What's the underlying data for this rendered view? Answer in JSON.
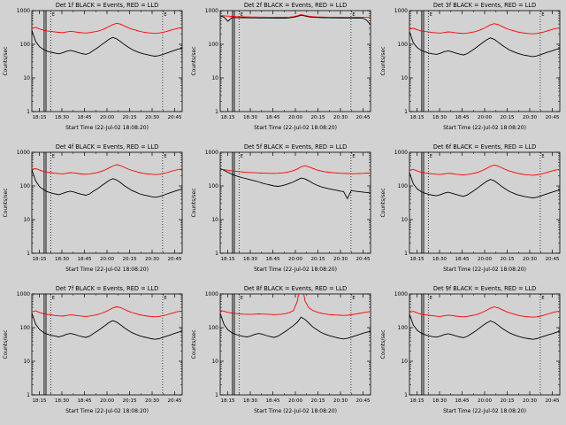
{
  "window": {
    "background": "#d2d2d2"
  },
  "colors": {
    "events": "#000000",
    "lld": "#ff0000",
    "frame": "#000000"
  },
  "chart_data": {
    "common": {
      "type": "line",
      "yscale": "log",
      "ylim": [
        1,
        1000
      ],
      "ytick_labels": [
        "1000",
        "100",
        "10",
        "1"
      ],
      "ytick_values": [
        1000,
        100,
        10,
        1
      ],
      "xlabel": "Start Time (22-Jul-02 18:08:20)",
      "ylabel": "Counts/sec",
      "xtick_labels": [
        "18:15",
        "18:30",
        "18:45",
        "20:00",
        "20:15",
        "20:30",
        "20:45"
      ],
      "xtick_pos": [
        0.05,
        0.2,
        0.35,
        0.5,
        0.65,
        0.8,
        0.95
      ],
      "vlines_solid": [
        0.082,
        0.094
      ],
      "vlines_dotted": [
        0.125,
        0.87
      ],
      "vline_flag": "E",
      "legend_note": "BLACK = Events, RED = LLD",
      "grid": false
    },
    "panels": [
      {
        "det": "1f",
        "title": "Det 1f BLACK = Events, RED = LLD",
        "series": [
          {
            "name": "Events",
            "color": "#000000",
            "values": [
              260,
              120,
              85,
              70,
              62,
              58,
              55,
              52,
              56,
              62,
              66,
              62,
              57,
              53,
              50,
              55,
              66,
              78,
              95,
              115,
              140,
              160,
              145,
              120,
              98,
              82,
              70,
              62,
              56,
              52,
              49,
              46,
              44,
              46,
              50,
              55,
              60,
              66,
              72,
              78
            ]
          },
          {
            "name": "LLD",
            "color": "#ff0000",
            "values": [
              300,
              320,
              285,
              262,
              250,
              242,
              232,
              226,
              222,
              232,
              242,
              237,
              227,
              221,
              216,
              222,
              232,
              244,
              264,
              294,
              335,
              385,
              420,
              395,
              350,
              310,
              282,
              262,
              242,
              230,
              221,
              216,
              211,
              216,
              226,
              242,
              262,
              282,
              302,
              312
            ]
          }
        ]
      },
      {
        "det": "2f",
        "title": "Det 2f BLACK = Events, RED = LLD",
        "series": [
          {
            "name": "Events",
            "color": "#000000",
            "values": [
              700,
              640,
              480,
              620,
              618,
              616,
              614,
              612,
              610,
              608,
              606,
              605,
              604,
              603,
              602,
              601,
              600,
              602,
              612,
              632,
              672,
              730,
              690,
              655,
              636,
              626,
              620,
              616,
              612,
              610,
              608,
              606,
              605,
              604,
              603,
              602,
              601,
              600,
              520,
              380
            ]
          },
          {
            "name": "LLD",
            "color": "#ff0000",
            "values": [
              720,
              700,
              688,
              676,
              668,
              662,
              656,
              652,
              648,
              645,
              643,
              641,
              640,
              638,
              637,
              636,
              635,
              636,
              644,
              664,
              704,
              762,
              722,
              684,
              662,
              652,
              646,
              642,
              639,
              637,
              635,
              634,
              633,
              632,
              632,
              631,
              630,
              629,
              627,
              624
            ]
          }
        ]
      },
      {
        "det": "3f",
        "title": "Det 3f BLACK = Events, RED = LLD",
        "series": [
          {
            "name": "Events",
            "color": "#000000",
            "values": [
              240,
              110,
              80,
              66,
              60,
              55,
              52,
              50,
              54,
              60,
              64,
              60,
              55,
              51,
              48,
              53,
              63,
              75,
              92,
              112,
              135,
              155,
              140,
              115,
              94,
              79,
              67,
              60,
              54,
              50,
              47,
              45,
              43,
              45,
              49,
              54,
              59,
              64,
              70,
              76
            ]
          },
          {
            "name": "LLD",
            "color": "#ff0000",
            "values": [
              280,
              300,
              270,
              250,
              240,
              232,
              224,
              218,
              214,
              224,
              234,
              229,
              219,
              213,
              209,
              215,
              225,
              237,
              257,
              287,
              327,
              377,
              410,
              385,
              340,
              300,
              272,
              252,
              234,
              222,
              213,
              208,
              204,
              209,
              219,
              235,
              255,
              275,
              295,
              305
            ]
          }
        ]
      },
      {
        "det": "4f",
        "title": "Det 4f BLACK = Events, RED = LLD",
        "series": [
          {
            "name": "Events",
            "color": "#000000",
            "values": [
              300,
              140,
              95,
              78,
              68,
              62,
              58,
              55,
              60,
              66,
              70,
              66,
              60,
              56,
              53,
              58,
              70,
              82,
              100,
              120,
              145,
              165,
              150,
              125,
              102,
              86,
              73,
              65,
              58,
              54,
              51,
              48,
              46,
              48,
              52,
              58,
              63,
              69,
              75,
              82
            ]
          },
          {
            "name": "LLD",
            "color": "#ff0000",
            "values": [
              310,
              330,
              295,
              270,
              258,
              248,
              238,
              232,
              228,
              238,
              248,
              243,
              233,
              227,
              222,
              228,
              238,
              250,
              270,
              300,
              342,
              392,
              428,
              402,
              356,
              316,
              288,
              268,
              248,
              236,
              227,
              222,
              217,
              222,
              232,
              248,
              268,
              288,
              308,
              318
            ]
          }
        ]
      },
      {
        "det": "5f",
        "title": "Det 5f BLACK = Events, RED = LLD",
        "series": [
          {
            "name": "Events",
            "color": "#000000",
            "values": [
              330,
              290,
              255,
              225,
              202,
              186,
              172,
              161,
              151,
              141,
              131,
              121,
              113,
              106,
              100,
              97,
              101,
              109,
              119,
              131,
              151,
              171,
              161,
              141,
              121,
              106,
              96,
              89,
              83,
              79,
              75,
              71,
              68,
              42,
              73,
              70,
              68,
              66,
              64,
              62
            ]
          },
          {
            "name": "LLD",
            "color": "#ff0000",
            "values": [
              315,
              305,
              292,
              282,
              273,
              266,
              259,
              253,
              249,
              246,
              243,
              241,
              239,
              237,
              236,
              238,
              243,
              251,
              266,
              286,
              321,
              371,
              401,
              371,
              331,
              301,
              281,
              266,
              256,
              249,
              243,
              239,
              236,
              233,
              231,
              232,
              234,
              237,
              241,
              244
            ]
          }
        ]
      },
      {
        "det": "6f",
        "title": "Det 6f BLACK = Events, RED = LLD",
        "series": [
          {
            "name": "Events",
            "color": "#000000",
            "values": [
              250,
              115,
              82,
              68,
              61,
              56,
              53,
              51,
              55,
              61,
              65,
              61,
              56,
              52,
              49,
              54,
              64,
              76,
              93,
              113,
              137,
              157,
              142,
              117,
              95,
              80,
              68,
              61,
              55,
              51,
              48,
              46,
              44,
              46,
              50,
              55,
              60,
              65,
              71,
              77
            ]
          },
          {
            "name": "LLD",
            "color": "#ff0000",
            "values": [
              290,
              310,
              278,
              256,
              245,
              237,
              228,
              222,
              218,
              228,
              238,
              233,
              223,
              217,
              213,
              219,
              229,
              241,
              261,
              291,
              331,
              381,
              415,
              390,
              345,
              305,
              277,
              257,
              238,
              226,
              217,
              212,
              208,
              213,
              223,
              239,
              259,
              279,
              299,
              309
            ]
          }
        ]
      },
      {
        "det": "7f",
        "title": "Det 7f BLACK = Events, RED = LLD",
        "series": [
          {
            "name": "Events",
            "color": "#000000",
            "values": [
              270,
              125,
              88,
              72,
              64,
              59,
              56,
              53,
              57,
              63,
              67,
              63,
              58,
              54,
              51,
              56,
              67,
              79,
              96,
              116,
              141,
              161,
              146,
              121,
              99,
              83,
              71,
              63,
              57,
              53,
              50,
              47,
              45,
              47,
              51,
              56,
              61,
              67,
              73,
              79
            ]
          },
          {
            "name": "LLD",
            "color": "#ff0000",
            "values": [
              295,
              315,
              282,
              259,
              248,
              240,
              230,
              224,
              220,
              230,
              240,
              235,
              225,
              219,
              215,
              221,
              231,
              243,
              263,
              293,
              333,
              383,
              418,
              393,
              348,
              308,
              280,
              260,
              241,
              229,
              220,
              215,
              210,
              215,
              225,
              241,
              261,
              281,
              301,
              311
            ]
          }
        ]
      },
      {
        "det": "8f",
        "title": "Det 8f BLACK = Events, RED = LLD",
        "series": [
          {
            "name": "Events",
            "color": "#000000",
            "values": [
              265,
              122,
              86,
              71,
              63,
              58,
              55,
              53,
              57,
              63,
              67,
              63,
              58,
              54,
              51,
              56,
              66,
              78,
              95,
              115,
              145,
              205,
              175,
              135,
              105,
              88,
              74,
              65,
              59,
              55,
              51,
              48,
              46,
              48,
              52,
              57,
              62,
              68,
              73,
              77
            ]
          },
          {
            "name": "LLD",
            "color": "#ff0000",
            "values": [
              325,
              305,
              283,
              272,
              262,
              256,
              251,
              249,
              246,
              251,
              256,
              253,
              249,
              246,
              244,
              246,
              251,
              261,
              281,
              321,
              610,
              2600,
              620,
              385,
              325,
              292,
              272,
              257,
              247,
              241,
              236,
              233,
              231,
              234,
              241,
              251,
              263,
              276,
              291,
              301
            ]
          }
        ]
      },
      {
        "det": "9f",
        "title": "Det 9f BLACK = Events, RED = LLD",
        "series": [
          {
            "name": "Events",
            "color": "#000000",
            "values": [
              255,
              118,
              84,
              69,
              62,
              57,
              54,
              52,
              56,
              62,
              66,
              62,
              57,
              53,
              50,
              55,
              65,
              77,
              94,
              114,
              138,
              158,
              143,
              118,
              96,
              81,
              69,
              62,
              56,
              52,
              49,
              47,
              45,
              47,
              51,
              56,
              61,
              66,
              72,
              78
            ]
          },
          {
            "name": "LLD",
            "color": "#ff0000",
            "values": [
              285,
              305,
              274,
              253,
              242,
              234,
              225,
              219,
              215,
              225,
              235,
              230,
              220,
              214,
              210,
              216,
              226,
              238,
              258,
              288,
              328,
              378,
              412,
              387,
              342,
              302,
              274,
              254,
              235,
              223,
              214,
              209,
              205,
              210,
              220,
              236,
              256,
              276,
              296,
              306
            ]
          }
        ]
      }
    ]
  }
}
